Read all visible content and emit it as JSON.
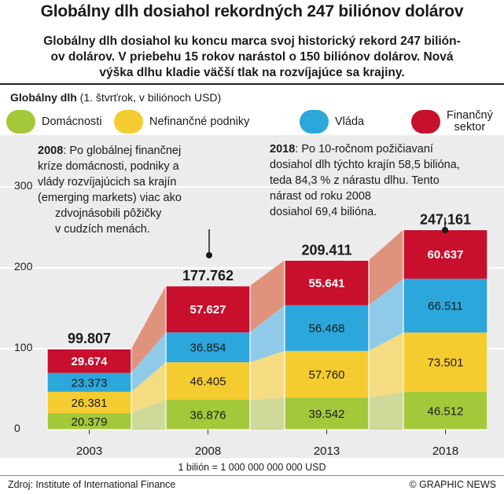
{
  "header": {
    "title": "Globálny dlh dosiahol rekordných 247 biliónov dolárov",
    "subtitle_line1": "Globálny dlh dosiahol ku koncu marca svoj historický rekord 247 bilión-",
    "subtitle_line2": "ov dolárov. V priebehu 15 rokov narástol o 150 biliónov dolárov. Nová",
    "subtitle_line3": "výška dlhu kladie väčší tlak na rozvíjajúce sa krajiny."
  },
  "unit_label_bold": "Globálny dlh",
  "unit_label_rest": "(1. štvrťrok, v biliónoch USD)",
  "legend": [
    {
      "label": "Domácnosti",
      "color": "#a3c93a"
    },
    {
      "label": "Nefinančné podniky",
      "color": "#f5cc30"
    },
    {
      "label": "Vláda",
      "color": "#2ba7dc"
    },
    {
      "label_line1": "Finančný",
      "label_line2": "sektor",
      "color": "#c8102e"
    }
  ],
  "notes": {
    "n2008": {
      "year": "2008",
      "line1": ": Po globálnej finančnej",
      "line2": "kríze domácnosti, podniky a",
      "line3": "vlády rozvíjajúcich sa krajín",
      "line4": "(emerging markets) viac ako",
      "line5": "zdvojnásobili pôžičky",
      "line6": "v cudzích menách."
    },
    "n2018": {
      "year": "2018",
      "line1": ": Po 10-ročnom požičiavaní",
      "line2": "dosiahol dlh týchto krajín 58,5 bilióna,",
      "line3": "teda 84,3 % z nárastu dlhu. Tento",
      "line4": "nárast od roku 2008",
      "line5": "dosiahol 69,4 bilióna."
    }
  },
  "chart_data": {
    "type": "bar",
    "stacked": true,
    "categories": [
      "2003",
      "2008",
      "2013",
      "2018"
    ],
    "series": [
      {
        "name": "Domácnosti",
        "values": [
          20.379,
          36.876,
          39.542,
          46.512
        ],
        "labels": [
          "20.379",
          "36.876",
          "39.542",
          "46.512"
        ],
        "color": "#a3c93a"
      },
      {
        "name": "Nefinančné podniky",
        "values": [
          26.381,
          46.405,
          57.76,
          73.501
        ],
        "labels": [
          "26.381",
          "46.405",
          "57.760",
          "73.501"
        ],
        "color": "#f5cc30"
      },
      {
        "name": "Vláda",
        "values": [
          23.373,
          36.854,
          56.468,
          66.511
        ],
        "labels": [
          "23.373",
          "36.854",
          "56.468",
          "66.511"
        ],
        "color": "#2ba7dc"
      },
      {
        "name": "Finančný sektor",
        "values": [
          29.674,
          57.627,
          55.641,
          60.637
        ],
        "labels": [
          "29.674",
          "57.627",
          "55.641",
          "60.637"
        ],
        "color": "#c8102e"
      }
    ],
    "totals": [
      99.807,
      177.762,
      209.411,
      247.161
    ],
    "total_labels": [
      "99.807",
      "177.762",
      "209.411",
      "247.161"
    ],
    "yticks": [
      0,
      100,
      200,
      300
    ],
    "ytick_labels": [
      "0",
      "100",
      "200",
      "300"
    ],
    "ylim": [
      0,
      300
    ],
    "grid": true,
    "legend_position": "top"
  },
  "footnote": "1 bilión = 1 000 000 000 000 USD",
  "source": "Zdroj: Institute of International Finance",
  "credit": "© GRAPHIC NEWS"
}
